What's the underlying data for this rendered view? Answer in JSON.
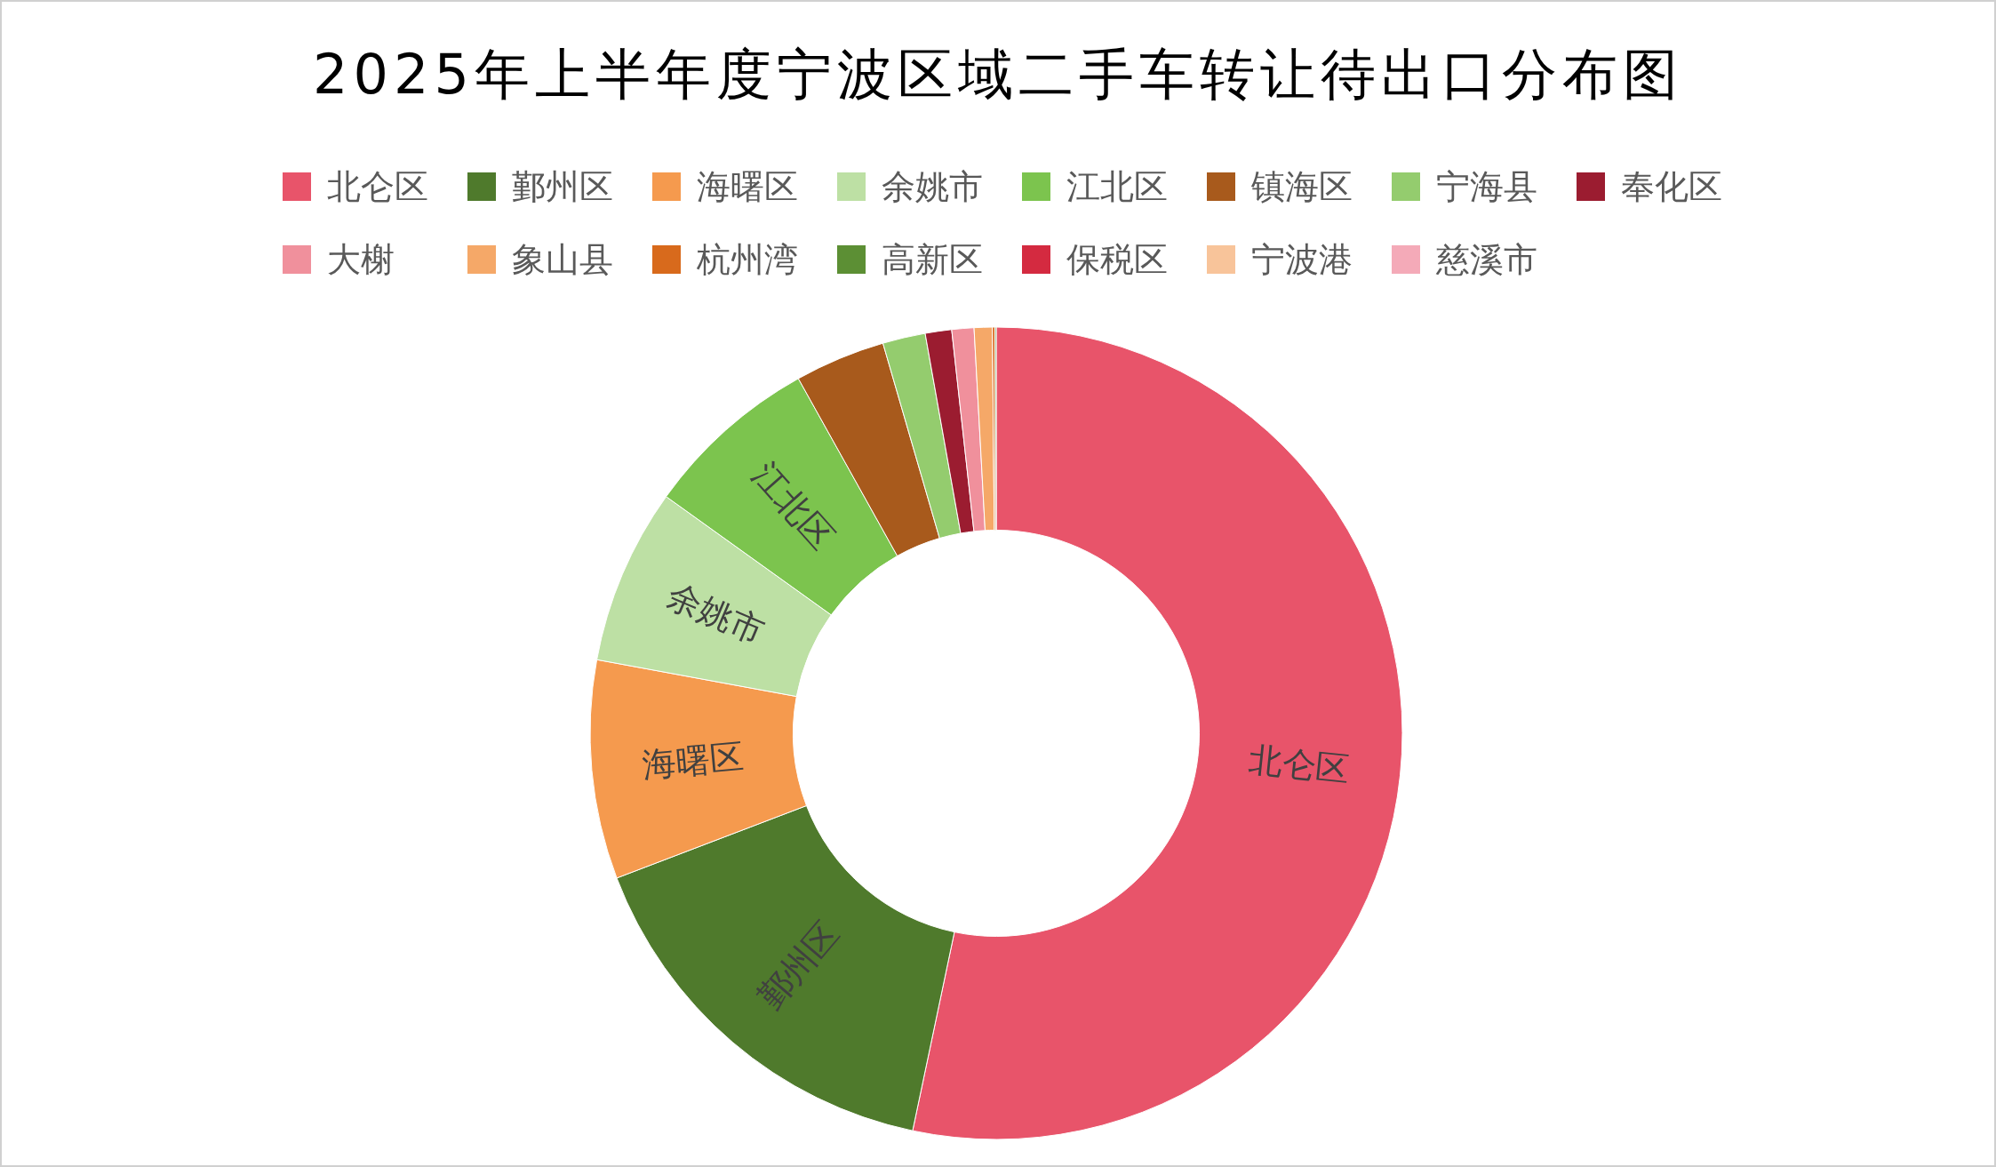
{
  "chart_data": {
    "type": "donut",
    "title": "2025年上半年度宁波区域二手车转让待出口分布图",
    "categories": [
      "北仑区",
      "鄞州区",
      "海曙区",
      "余姚市",
      "江北区",
      "镇海区",
      "宁海县",
      "奉化区",
      "大榭",
      "象山县",
      "杭州湾",
      "高新区",
      "保税区",
      "宁波港",
      "慈溪市"
    ],
    "values": [
      53.3,
      15.9,
      8.7,
      7.0,
      7.0,
      3.6,
      1.7,
      1.05,
      0.88,
      0.72,
      0.1,
      0.05,
      0,
      0,
      0
    ],
    "colors": [
      "#e8546a",
      "#4f7a2c",
      "#f59a4e",
      "#bde0a4",
      "#7cc44e",
      "#a85a1c",
      "#94cc6e",
      "#9b1c30",
      "#f0909c",
      "#f5a868",
      "#d86a1c",
      "#5c8f34",
      "#d42a40",
      "#f8c49a",
      "#f4aab8"
    ],
    "legend": "top"
  }
}
